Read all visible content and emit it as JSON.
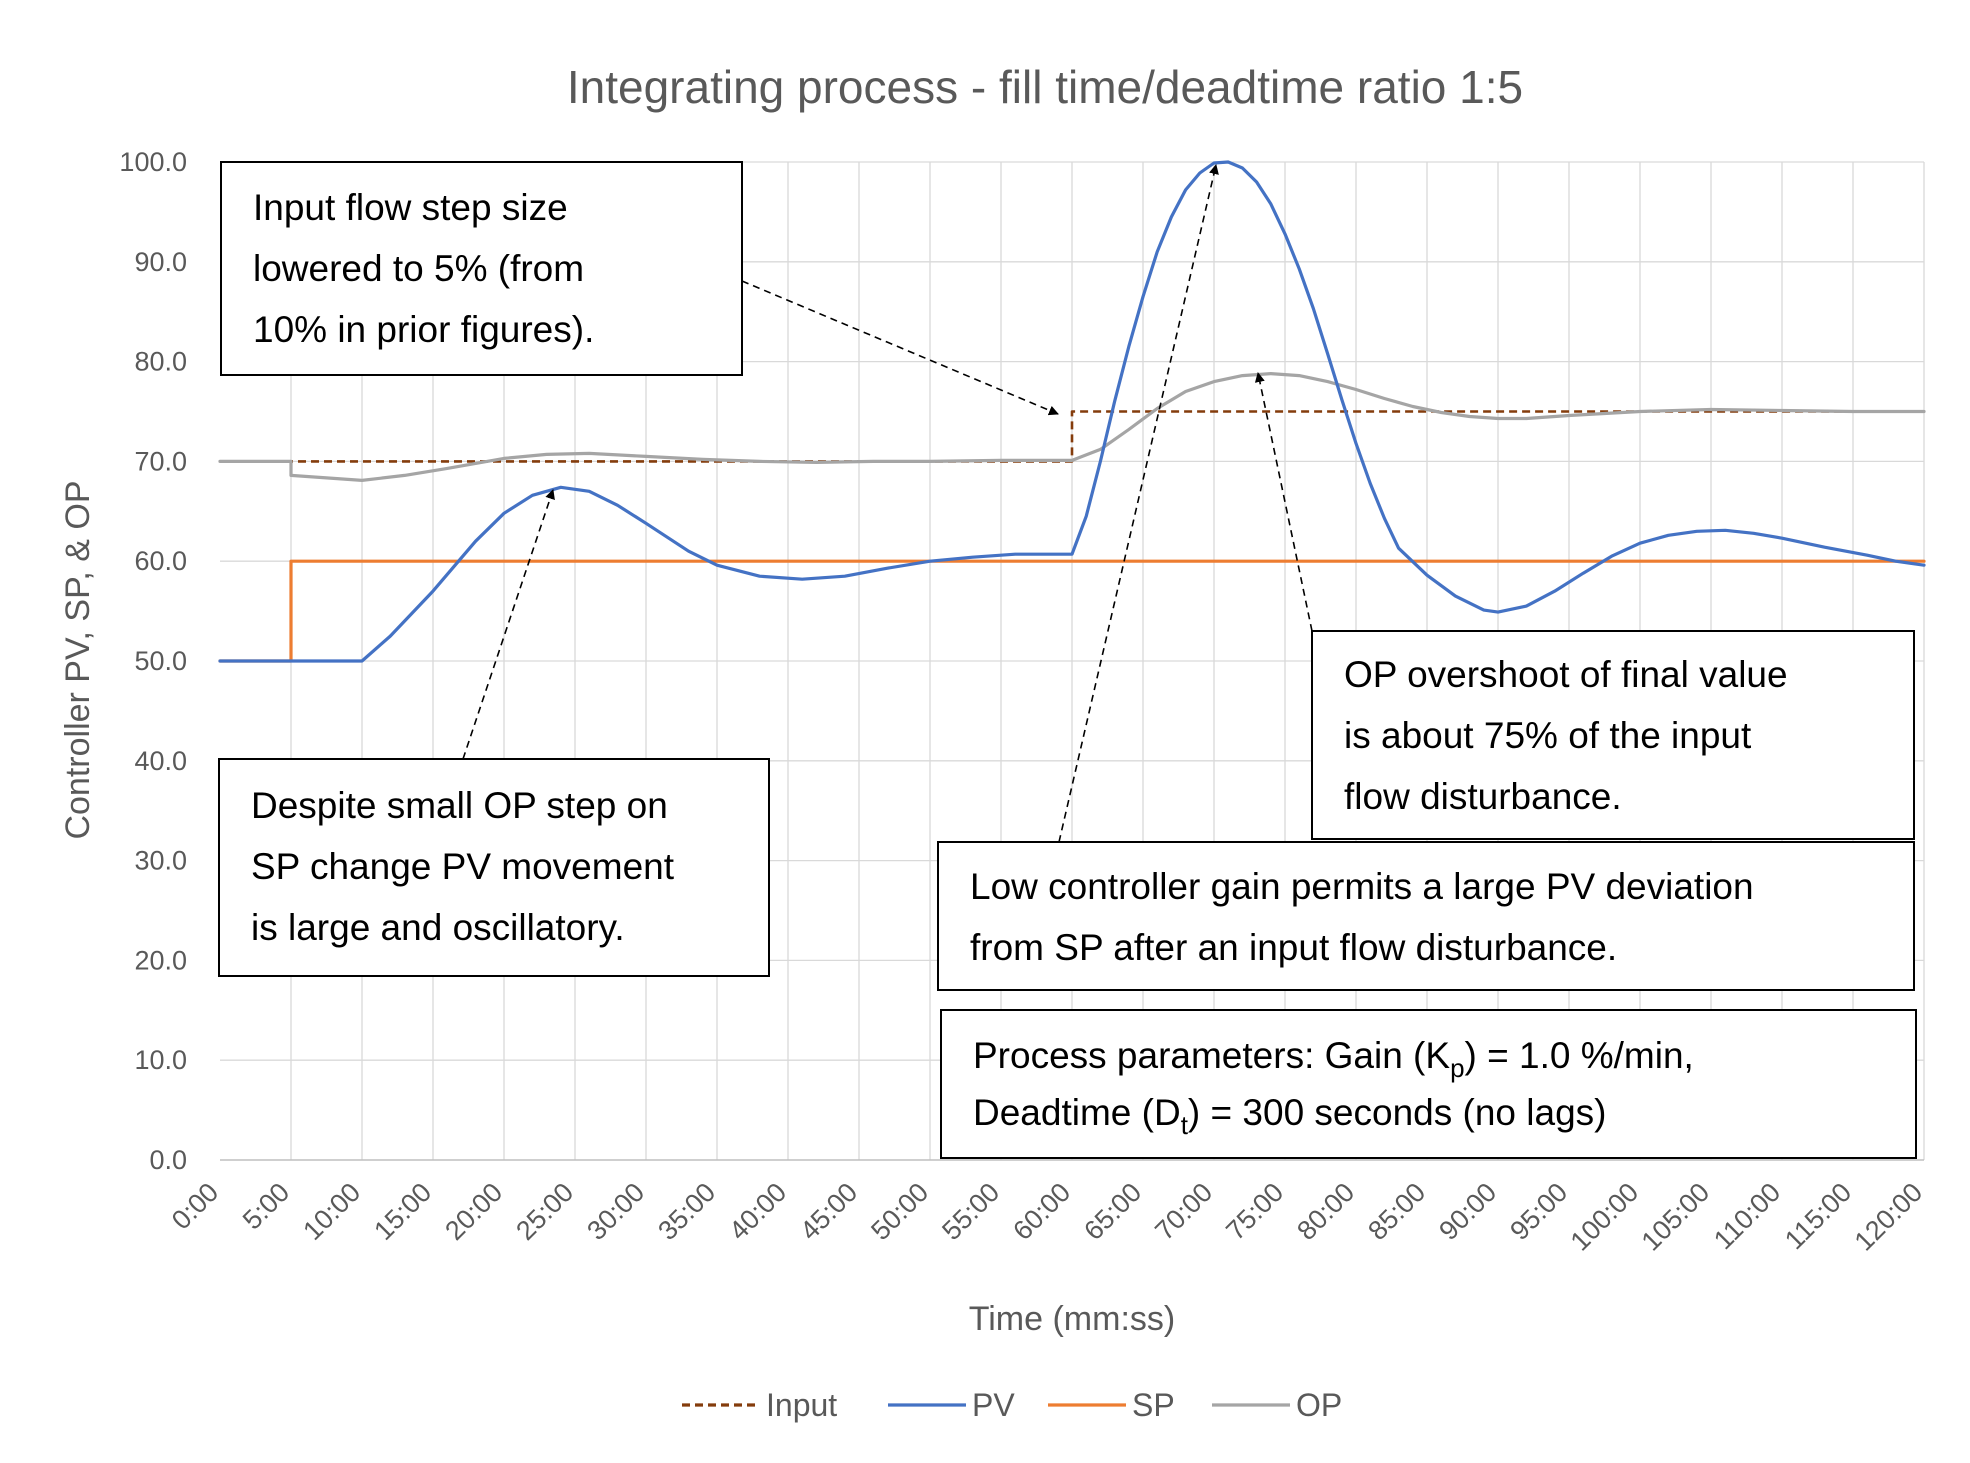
{
  "chart_data": {
    "type": "line",
    "title": "Integrating process - fill time/deadtime ratio 1:5",
    "xlabel": "Time (mm:ss)",
    "ylabel": "Controller PV, SP, & OP",
    "xlim": [
      0,
      120
    ],
    "ylim": [
      0,
      100
    ],
    "x_ticks": [
      0,
      5,
      10,
      15,
      20,
      25,
      30,
      35,
      40,
      45,
      50,
      55,
      60,
      65,
      70,
      75,
      80,
      85,
      90,
      95,
      100,
      105,
      110,
      115,
      120
    ],
    "x_tick_labels": [
      "0:00",
      "5:00",
      "10:00",
      "15:00",
      "20:00",
      "25:00",
      "30:00",
      "35:00",
      "40:00",
      "45:00",
      "50:00",
      "55:00",
      "60:00",
      "65:00",
      "70:00",
      "75:00",
      "80:00",
      "85:00",
      "90:00",
      "95:00",
      "100:00",
      "105:00",
      "110:00",
      "115:00",
      "120:00"
    ],
    "y_ticks": [
      0,
      10,
      20,
      30,
      40,
      50,
      60,
      70,
      80,
      90,
      100
    ],
    "y_tick_labels": [
      "0.0",
      "10.0",
      "20.0",
      "30.0",
      "40.0",
      "50.0",
      "60.0",
      "70.0",
      "80.0",
      "90.0",
      "100.0"
    ],
    "grid": true,
    "legend_position": "bottom",
    "series": [
      {
        "name": "Input",
        "color": "#843c0c",
        "dash": "dashed",
        "points": [
          [
            0,
            70
          ],
          [
            60,
            70
          ],
          [
            60,
            75
          ],
          [
            120,
            75
          ]
        ]
      },
      {
        "name": "PV",
        "color": "#4472c4",
        "dash": "solid",
        "points": [
          [
            0,
            50
          ],
          [
            10,
            50
          ],
          [
            12,
            52.5
          ],
          [
            15,
            57
          ],
          [
            18,
            62
          ],
          [
            20,
            64.8
          ],
          [
            22,
            66.6
          ],
          [
            24,
            67.4
          ],
          [
            26,
            67.0
          ],
          [
            28,
            65.6
          ],
          [
            30,
            63.8
          ],
          [
            33,
            61.0
          ],
          [
            35,
            59.6
          ],
          [
            38,
            58.5
          ],
          [
            41,
            58.2
          ],
          [
            44,
            58.5
          ],
          [
            47,
            59.3
          ],
          [
            50,
            60.0
          ],
          [
            53,
            60.4
          ],
          [
            56,
            60.7
          ],
          [
            60,
            60.7
          ],
          [
            61,
            64.5
          ],
          [
            62,
            70
          ],
          [
            63,
            76
          ],
          [
            64,
            81.5
          ],
          [
            65,
            86.5
          ],
          [
            66,
            91
          ],
          [
            67,
            94.5
          ],
          [
            68,
            97.2
          ],
          [
            69,
            98.9
          ],
          [
            70,
            99.9
          ],
          [
            71,
            100
          ],
          [
            72,
            99.4
          ],
          [
            73,
            98
          ],
          [
            74,
            95.8
          ],
          [
            75,
            92.8
          ],
          [
            76,
            89.3
          ],
          [
            77,
            85.3
          ],
          [
            78,
            80.8
          ],
          [
            79,
            76.2
          ],
          [
            80,
            71.8
          ],
          [
            81,
            67.8
          ],
          [
            82,
            64.3
          ],
          [
            83,
            61.3
          ],
          [
            85,
            58.6
          ],
          [
            87,
            56.5
          ],
          [
            89,
            55.1
          ],
          [
            90,
            54.9
          ],
          [
            92,
            55.5
          ],
          [
            94,
            57
          ],
          [
            96,
            58.8
          ],
          [
            98,
            60.5
          ],
          [
            100,
            61.8
          ],
          [
            102,
            62.6
          ],
          [
            104,
            63.0
          ],
          [
            106,
            63.1
          ],
          [
            108,
            62.8
          ],
          [
            110,
            62.3
          ],
          [
            113,
            61.4
          ],
          [
            116,
            60.6
          ],
          [
            118,
            60.0
          ],
          [
            120,
            59.6
          ]
        ]
      },
      {
        "name": "SP",
        "color": "#ed7d31",
        "dash": "solid",
        "points": [
          [
            0,
            50
          ],
          [
            5,
            50
          ],
          [
            5,
            60
          ],
          [
            120,
            60
          ]
        ]
      },
      {
        "name": "OP",
        "color": "#a5a5a5",
        "dash": "solid",
        "points": [
          [
            0,
            70
          ],
          [
            5,
            70
          ],
          [
            5,
            68.6
          ],
          [
            8,
            68.3
          ],
          [
            10,
            68.1
          ],
          [
            13,
            68.6
          ],
          [
            16,
            69.3
          ],
          [
            20,
            70.3
          ],
          [
            23,
            70.7
          ],
          [
            26,
            70.8
          ],
          [
            30,
            70.5
          ],
          [
            34,
            70.2
          ],
          [
            38,
            70.0
          ],
          [
            42,
            69.9
          ],
          [
            46,
            70.0
          ],
          [
            50,
            70.0
          ],
          [
            55,
            70.1
          ],
          [
            60,
            70.1
          ],
          [
            62,
            71.2
          ],
          [
            64,
            73.2
          ],
          [
            66,
            75.3
          ],
          [
            68,
            77.0
          ],
          [
            70,
            78.0
          ],
          [
            72,
            78.6
          ],
          [
            74,
            78.8
          ],
          [
            76,
            78.6
          ],
          [
            78,
            78.0
          ],
          [
            80,
            77.2
          ],
          [
            82,
            76.3
          ],
          [
            84,
            75.5
          ],
          [
            86,
            74.9
          ],
          [
            88,
            74.5
          ],
          [
            90,
            74.3
          ],
          [
            92,
            74.3
          ],
          [
            95,
            74.6
          ],
          [
            100,
            75.0
          ],
          [
            105,
            75.2
          ],
          [
            110,
            75.1
          ],
          [
            115,
            75.0
          ],
          [
            120,
            75.0
          ]
        ]
      }
    ],
    "annotations": [
      {
        "lines": [
          "Input flow step size",
          "lowered to 5% (from",
          "10% in prior figures)."
        ]
      },
      {
        "lines": [
          "Despite small OP step on",
          "SP change PV movement",
          "is large and oscillatory."
        ]
      },
      {
        "lines": [
          "OP overshoot of final value",
          "is about 75% of the input",
          "flow disturbance."
        ]
      },
      {
        "lines": [
          "Low controller gain permits a large PV deviation",
          "from SP after an input flow disturbance."
        ]
      },
      {
        "line1": {
          "before": "Process parameters:  Gain (K",
          "sub": "p",
          "after": ") = 1.0 %/min,"
        },
        "line2": {
          "before": "Deadtime (D",
          "sub": "t",
          "after": ") = 300 seconds  (no lags)"
        }
      }
    ]
  }
}
